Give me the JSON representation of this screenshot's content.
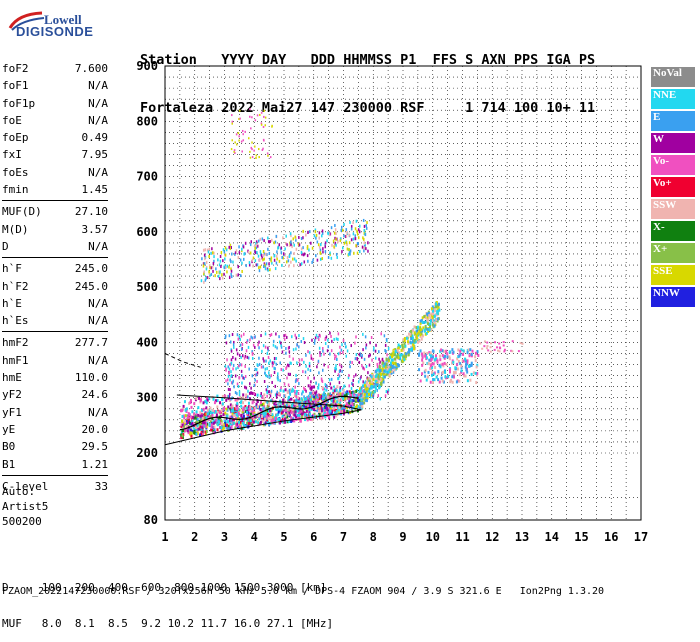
{
  "logo": {
    "line1": "Lowell",
    "line2": "DIGISONDE"
  },
  "header": {
    "line1": "Station   YYYY DAY   DDD HHMMSS P1  FFS S AXN PPS IGA PS",
    "line2": "Fortaleza 2022 Mai27 147 230000 RSF     1 714 100 10+ 11"
  },
  "params": {
    "group1": [
      {
        "k": "foF2",
        "v": "7.600"
      },
      {
        "k": "foF1",
        "v": "N/A"
      },
      {
        "k": "foF1p",
        "v": "N/A"
      },
      {
        "k": "foE",
        "v": "N/A"
      },
      {
        "k": "foEp",
        "v": "0.49"
      },
      {
        "k": "fxI",
        "v": "7.95"
      },
      {
        "k": "foEs",
        "v": "N/A"
      },
      {
        "k": "fmin",
        "v": "1.45"
      }
    ],
    "group2": [
      {
        "k": "MUF(D)",
        "v": "27.10"
      },
      {
        "k": "M(D)",
        "v": "3.57"
      },
      {
        "k": "D",
        "v": "N/A"
      }
    ],
    "group3": [
      {
        "k": "h`F",
        "v": "245.0"
      },
      {
        "k": "h`F2",
        "v": "245.0"
      },
      {
        "k": "h`E",
        "v": "N/A"
      },
      {
        "k": "h`Es",
        "v": "N/A"
      }
    ],
    "group4": [
      {
        "k": "hmF2",
        "v": "277.7"
      },
      {
        "k": "hmF1",
        "v": "N/A"
      },
      {
        "k": "hmE",
        "v": "110.0"
      },
      {
        "k": "yF2",
        "v": "24.6"
      },
      {
        "k": "yF1",
        "v": "N/A"
      },
      {
        "k": "yE",
        "v": "20.0"
      },
      {
        "k": "B0",
        "v": "29.5"
      },
      {
        "k": "B1",
        "v": "1.21"
      }
    ],
    "group5": [
      {
        "k": "C-level",
        "v": "33"
      }
    ]
  },
  "auto": {
    "l1": "Auto:",
    "l2": "Artist5",
    "l3": "500200"
  },
  "legend": [
    {
      "label": "NoVal",
      "color": "#8c8c8c"
    },
    {
      "label": "NNE",
      "color": "#22d8f0"
    },
    {
      "label": "E",
      "color": "#3aa0f0"
    },
    {
      "label": "W",
      "color": "#a000a0"
    },
    {
      "label": "Vo-",
      "color": "#f050c0"
    },
    {
      "label": "Vo+",
      "color": "#f00030"
    },
    {
      "label": "SSW",
      "color": "#f0b4b0"
    },
    {
      "label": "X-",
      "color": "#108010"
    },
    {
      "label": "X+",
      "color": "#88c048"
    },
    {
      "label": "SSE",
      "color": "#d8d800"
    },
    {
      "label": "NNW",
      "color": "#2020e0"
    }
  ],
  "chart_data": {
    "type": "scatter",
    "xlim": [
      1,
      17
    ],
    "ylim": [
      80,
      900
    ],
    "xticks": [
      "1",
      "2",
      "3",
      "4",
      "5",
      "6",
      "7",
      "8",
      "9",
      "10",
      "11",
      "12",
      "13",
      "14",
      "15",
      "16",
      "17"
    ],
    "yticks": [
      "900",
      "800",
      "700",
      "600",
      "500",
      "400",
      "300",
      "200",
      "80"
    ],
    "grid": true,
    "legend_position": "right"
  },
  "footer": {
    "d_line": "D     100  200  400  600  800 1000 1500 3000 [km]",
    "muf_line": "MUF   8.0  8.1  8.5  9.2 10.2 11.7 16.0 27.1 [MHz]",
    "file_line": "FZAOM_2022147230000.RSF / 320fx256h 50 kHz 5.0 km / DPS-4 FZAOM 904 / 3.9 S 321.6 E   Ion2Png 1.3.20"
  }
}
